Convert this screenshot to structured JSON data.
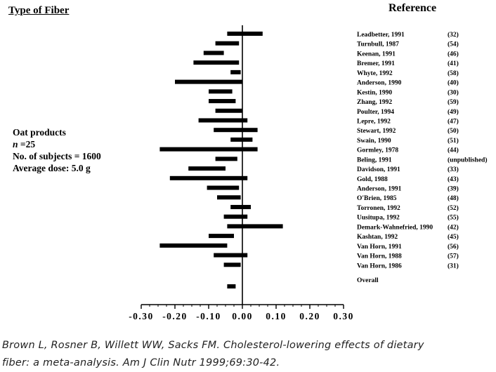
{
  "headers": {
    "left_title": "Type of Fiber",
    "right_title": "Reference"
  },
  "summary": {
    "line1": "Oat products",
    "line2_italic": "n",
    "line2_rest": " =25",
    "line3": "No. of subjects = 1600",
    "line4": "Average dose: 5.0 g"
  },
  "citation": {
    "line1": "Brown L, Rosner B, Willett WW, Sacks FM. Cholesterol-lowering effects of dietary",
    "line2": "fiber: a meta-analysis. Am J Clin Nutr 1999;69:30-42."
  },
  "chart_data": {
    "type": "forest",
    "title": "",
    "xlabel": "",
    "ylabel": "",
    "xlim": [
      -0.3,
      0.3
    ],
    "xticks": [
      "-0.30",
      "-0.20",
      "-0.10",
      "0.00",
      "0.10",
      "0.20",
      "0.30"
    ],
    "reference_line": 0.0,
    "studies": [
      {
        "label": "Leadbetter, 1991",
        "ref": "(32)",
        "low": -0.045,
        "high": 0.06
      },
      {
        "label": "Turnbull, 1987",
        "ref": "(54)",
        "low": -0.08,
        "high": -0.01
      },
      {
        "label": "Keenan, 1991",
        "ref": "(46)",
        "low": -0.115,
        "high": -0.055
      },
      {
        "label": "Bremer, 1991",
        "ref": "(41)",
        "low": -0.145,
        "high": -0.01
      },
      {
        "label": "Whyte, 1992",
        "ref": "(58)",
        "low": -0.035,
        "high": -0.005
      },
      {
        "label": "Anderson, 1990",
        "ref": "(40)",
        "low": -0.2,
        "high": 0.0
      },
      {
        "label": "Kestin, 1990",
        "ref": "(30)",
        "low": -0.1,
        "high": -0.03
      },
      {
        "label": "Zhang, 1992",
        "ref": "(59)",
        "low": -0.1,
        "high": -0.02
      },
      {
        "label": "Poulter, 1994",
        "ref": "(49)",
        "low": -0.08,
        "high": 0.0
      },
      {
        "label": "Lepre, 1992",
        "ref": "(47)",
        "low": -0.13,
        "high": 0.015
      },
      {
        "label": "Stewart, 1992",
        "ref": "(50)",
        "low": -0.085,
        "high": 0.045
      },
      {
        "label": "Swain, 1990",
        "ref": "(51)",
        "low": -0.035,
        "high": 0.03
      },
      {
        "label": "Gormley, 1978",
        "ref": "(44)",
        "low": -0.245,
        "high": 0.045
      },
      {
        "label": "Beling, 1991",
        "ref": "(unpublished)",
        "low": -0.08,
        "high": -0.015
      },
      {
        "label": "Davidson, 1991",
        "ref": "(33)",
        "low": -0.16,
        "high": -0.05
      },
      {
        "label": "Gold, 1988",
        "ref": "(43)",
        "low": -0.215,
        "high": 0.015
      },
      {
        "label": "Anderson, 1991",
        "ref": "(39)",
        "low": -0.105,
        "high": -0.01
      },
      {
        "label": "O'Brien, 1985",
        "ref": "(48)",
        "low": -0.075,
        "high": -0.005
      },
      {
        "label": "Torronen, 1992",
        "ref": "(52)",
        "low": -0.035,
        "high": 0.025
      },
      {
        "label": "Uusitupa, 1992",
        "ref": "(55)",
        "low": -0.055,
        "high": 0.015
      },
      {
        "label": "Demark-Wahnefried, 1990",
        "ref": "(42)",
        "low": -0.045,
        "high": 0.12
      },
      {
        "label": "Kashtan, 1992",
        "ref": "(45)",
        "low": -0.1,
        "high": -0.025
      },
      {
        "label": "Van Horn, 1991",
        "ref": "(56)",
        "low": -0.245,
        "high": -0.045
      },
      {
        "label": "Van Horn, 1988",
        "ref": "(57)",
        "low": -0.085,
        "high": 0.015
      },
      {
        "label": "Van Horn, 1986",
        "ref": "(31)",
        "low": -0.055,
        "high": -0.005
      }
    ],
    "overall": {
      "label": "Overall",
      "low": -0.045,
      "high": -0.02
    }
  }
}
